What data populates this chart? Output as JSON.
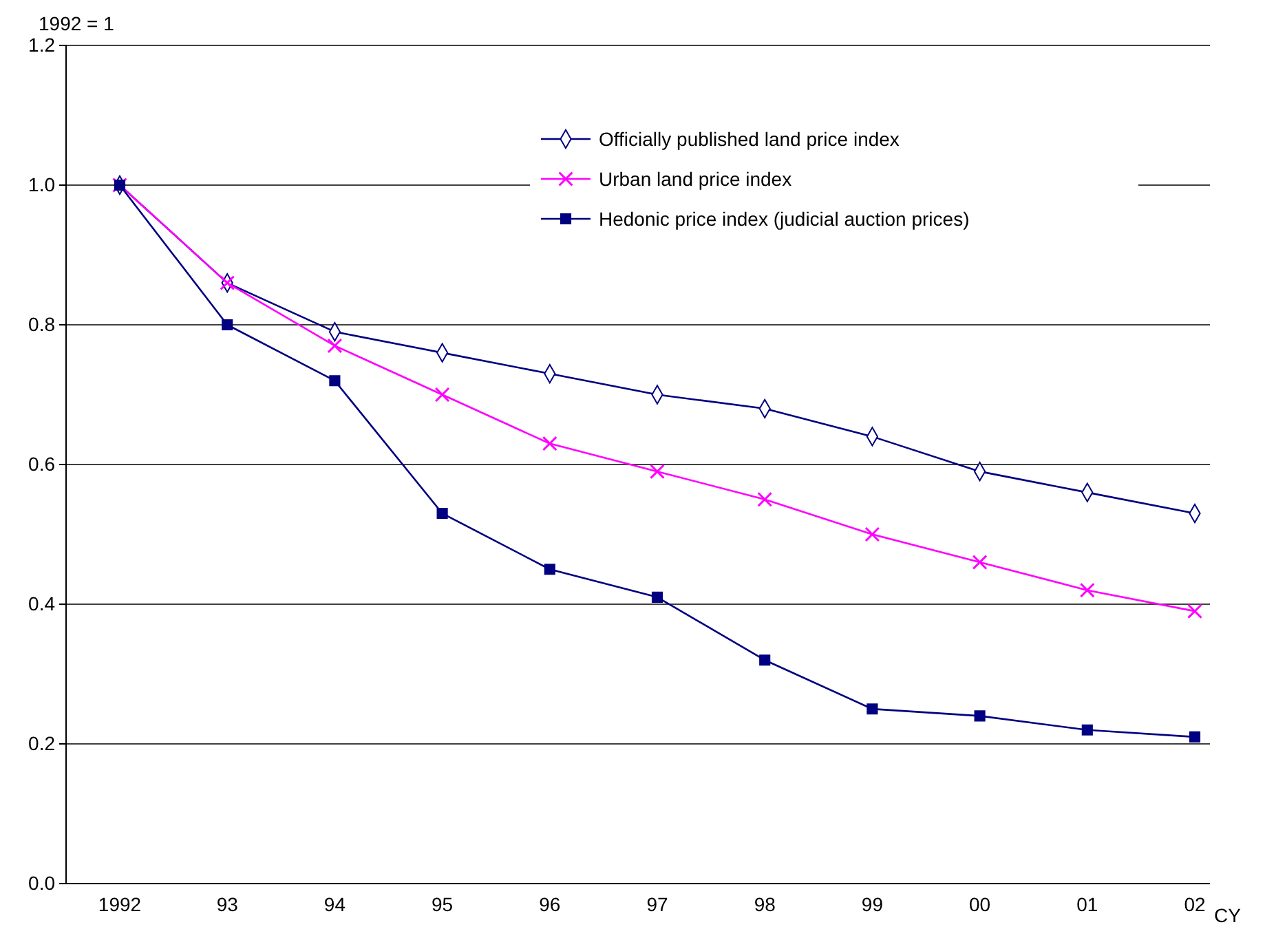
{
  "chart_data": {
    "type": "line",
    "ylabel": "1992 = 1",
    "xlabel": "CY",
    "categories": [
      "1992",
      "93",
      "94",
      "95",
      "96",
      "97",
      "98",
      "99",
      "00",
      "01",
      "02"
    ],
    "series": [
      {
        "name": "Officially published land price index",
        "color": "#000080",
        "marker": "diamond",
        "values": [
          1.0,
          0.86,
          0.79,
          0.76,
          0.73,
          0.7,
          0.68,
          0.64,
          0.59,
          0.56,
          0.53
        ]
      },
      {
        "name": "Urban land price index",
        "color": "#ff00ff",
        "marker": "cross",
        "values": [
          1.0,
          0.86,
          0.77,
          0.7,
          0.63,
          0.59,
          0.55,
          0.5,
          0.46,
          0.42,
          0.39
        ]
      },
      {
        "name": "Hedonic price index (judicial auction prices)",
        "color": "#000080",
        "marker": "square",
        "values": [
          1.0,
          0.8,
          0.72,
          0.53,
          0.45,
          0.41,
          0.32,
          0.25,
          0.24,
          0.22,
          0.21
        ]
      }
    ],
    "ylim": [
      0,
      1.2
    ],
    "yticks": [
      {
        "value": 0,
        "label": "0.0"
      },
      {
        "value": 0.2,
        "label": "0.2"
      },
      {
        "value": 0.4,
        "label": "0.4"
      },
      {
        "value": 0.6,
        "label": "0.6"
      },
      {
        "value": 0.8,
        "label": "0.8"
      },
      {
        "value": 1.0,
        "label": "1.0"
      },
      {
        "value": 1.2,
        "label": "1.2"
      }
    ],
    "grid": "y",
    "legend": "top right"
  }
}
